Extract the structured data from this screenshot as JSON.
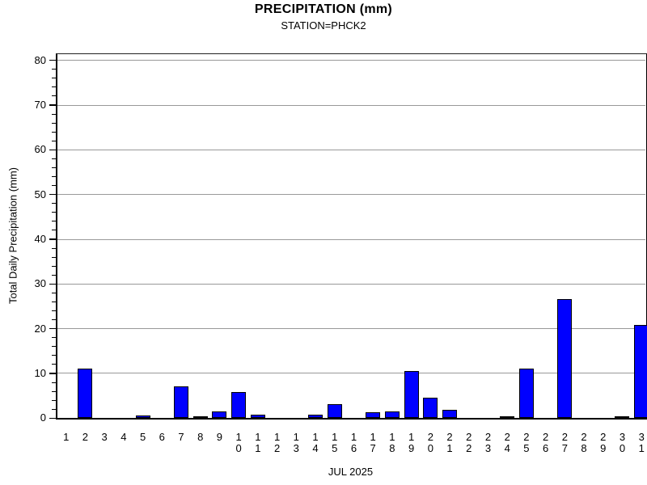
{
  "chart_data": {
    "type": "bar",
    "title": "PRECIPITATION (mm)",
    "subtitle": "STATION=PHCK2",
    "xlabel": "JUL 2025",
    "ylabel": "Total Daily Precipitation (mm)",
    "categories": [
      1,
      2,
      3,
      4,
      5,
      6,
      7,
      8,
      9,
      10,
      11,
      12,
      13,
      14,
      15,
      16,
      17,
      18,
      19,
      20,
      21,
      22,
      23,
      24,
      25,
      26,
      27,
      28,
      29,
      30,
      31
    ],
    "values": [
      0,
      11.1,
      0,
      0,
      0.6,
      0,
      7.1,
      0.5,
      1.5,
      5.9,
      0.7,
      0,
      0,
      0.7,
      3.1,
      0,
      1.4,
      1.5,
      10.5,
      4.6,
      1.9,
      0,
      0,
      0.3,
      11.0,
      0,
      26.7,
      0,
      0,
      0.3,
      20.9
    ],
    "ylim": [
      0,
      80
    ],
    "ytick_labels": [
      "0",
      "10",
      "20",
      "30",
      "40",
      "50",
      "60",
      "70",
      "80"
    ],
    "ytick_interval": 10,
    "yminor_tick_interval": 2,
    "grid": true,
    "legend": "none",
    "bar_fill_color": "#0000ff",
    "bar_outline_color": "#000000",
    "gridline_color": "#999999",
    "axis_color": "#000000",
    "text_color": "#000000",
    "background_color": "#ffffff"
  }
}
